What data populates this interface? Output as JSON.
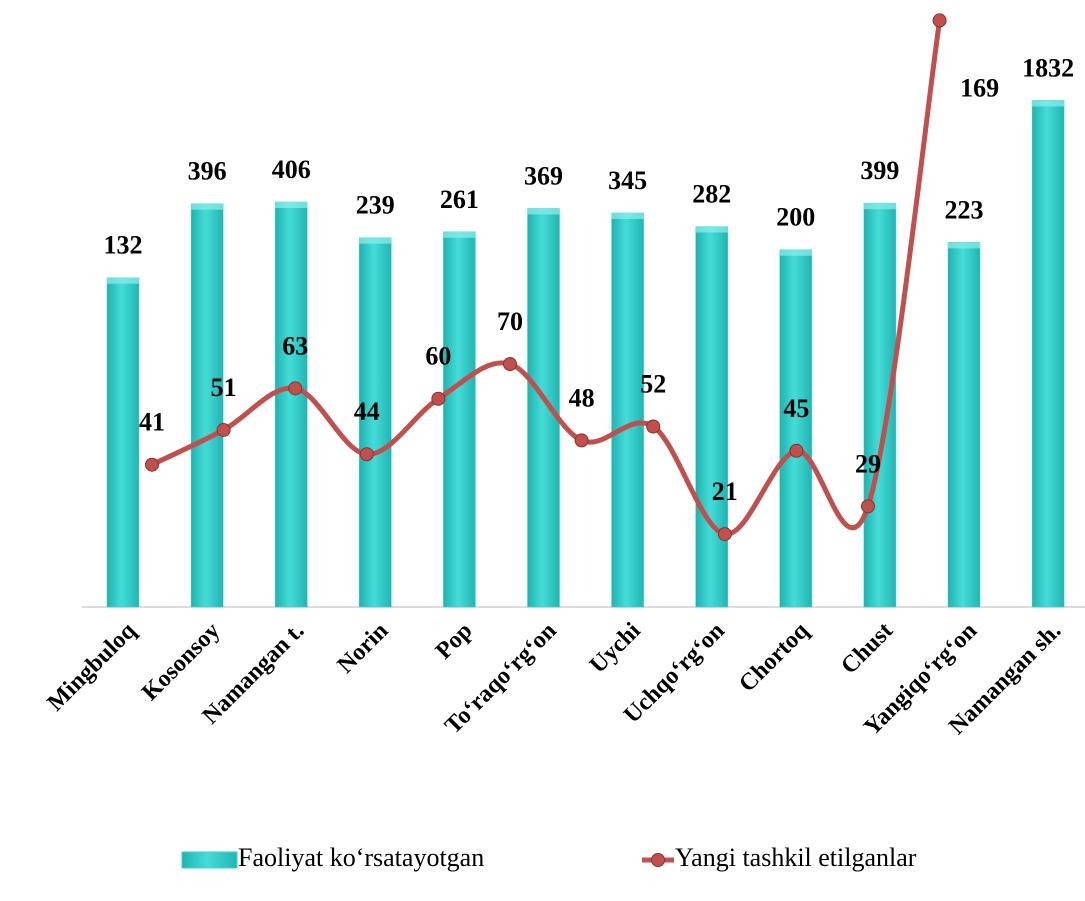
{
  "chart_data": {
    "type": "bar-line",
    "categories": [
      "Mingbuloq",
      "Kosonsoy",
      "Namangan t.",
      "Norin",
      "Pop",
      "To‘raqo‘rg‘on",
      "Uychi",
      "Uchqo‘rg‘on",
      "Chortoq",
      "Chust",
      "Yangiqo‘rg‘on",
      "Namangan sh."
    ],
    "series": [
      {
        "name": "Faoliyat ko‘rsatayotgan",
        "type": "bar",
        "color": "#3cd0cc",
        "values": [
          132,
          396,
          406,
          239,
          261,
          369,
          345,
          282,
          200,
          399,
          223,
          1832
        ]
      },
      {
        "name": "Yangi tashkil etilganlar",
        "type": "line",
        "axis": "y2",
        "color": "#c0504d",
        "values": [
          41,
          51,
          63,
          44,
          60,
          70,
          48,
          52,
          21,
          45,
          29,
          169
        ]
      }
    ],
    "ylim": [
      1,
      7000
    ],
    "log_scale": true,
    "y2lim": [
      0,
      172
    ],
    "grid": false,
    "legend": "bottom"
  }
}
